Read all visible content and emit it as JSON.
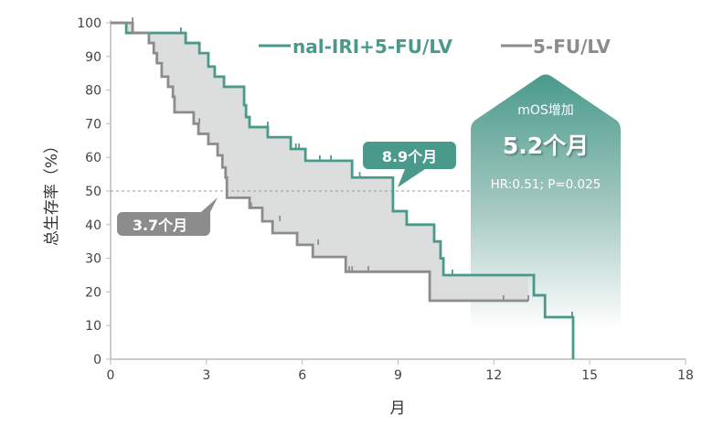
{
  "chart_data": {
    "type": "line",
    "subtype": "kaplan-meier step",
    "xlabel": "月",
    "ylabel": "总生存率（%）",
    "xlim": [
      0,
      18
    ],
    "ylim": [
      0,
      100
    ],
    "xticks": [
      0,
      3,
      6,
      9,
      12,
      15,
      18
    ],
    "yticks": [
      0,
      10,
      20,
      30,
      40,
      50,
      60,
      70,
      80,
      90,
      100
    ],
    "reference_line_y": 50,
    "legend_placement": "top-right",
    "colors": {
      "teal": "#4a9a8c",
      "grey": "#8c8c8c",
      "fill": "#dcdddd"
    },
    "series": [
      {
        "name": "nal-IRI+5-FU/LV",
        "color": "#4a9a8c",
        "steps": [
          [
            0,
            100
          ],
          [
            0.49,
            97
          ],
          [
            2.35,
            94
          ],
          [
            2.78,
            91
          ],
          [
            3.06,
            87
          ],
          [
            3.26,
            84
          ],
          [
            3.55,
            81
          ],
          [
            4.18,
            75.5
          ],
          [
            4.24,
            72
          ],
          [
            4.35,
            69
          ],
          [
            4.92,
            66
          ],
          [
            5.64,
            62.5
          ],
          [
            6.1,
            59
          ],
          [
            7.56,
            54
          ],
          [
            8.84,
            44
          ],
          [
            9.27,
            40
          ],
          [
            10.13,
            35
          ],
          [
            10.33,
            30
          ],
          [
            10.42,
            25
          ],
          [
            13.25,
            19
          ],
          [
            13.6,
            12.5
          ],
          [
            14.48,
            0
          ]
        ],
        "censored": [
          [
            2.2,
            97
          ],
          [
            4.92,
            69
          ],
          [
            5.65,
            62.5
          ],
          [
            5.8,
            62.5
          ],
          [
            5.9,
            62.5
          ],
          [
            6.55,
            59
          ],
          [
            6.9,
            59
          ],
          [
            7.8,
            54
          ],
          [
            10.7,
            25
          ],
          [
            14.45,
            12.5
          ]
        ],
        "median": 8.9
      },
      {
        "name": "5-FU/LV",
        "color": "#8c8c8c",
        "steps": [
          [
            0,
            100
          ],
          [
            0.69,
            97
          ],
          [
            1.2,
            94
          ],
          [
            1.35,
            91
          ],
          [
            1.45,
            88
          ],
          [
            1.6,
            84
          ],
          [
            1.8,
            81
          ],
          [
            1.95,
            78
          ],
          [
            2.0,
            73.4
          ],
          [
            2.6,
            70
          ],
          [
            2.75,
            67
          ],
          [
            3.06,
            64
          ],
          [
            3.35,
            60.6
          ],
          [
            3.5,
            57
          ],
          [
            3.6,
            54
          ],
          [
            3.64,
            48
          ],
          [
            4.35,
            45
          ],
          [
            4.75,
            41
          ],
          [
            5.07,
            37.5
          ],
          [
            5.84,
            34
          ],
          [
            6.33,
            30.4
          ],
          [
            7.36,
            26
          ],
          [
            9.99,
            17.4
          ]
        ],
        "end_x": 13.08,
        "censored": [
          [
            0.69,
            100
          ],
          [
            2.78,
            70
          ],
          [
            4.4,
            45
          ],
          [
            5.3,
            41
          ],
          [
            6.5,
            34
          ],
          [
            7.47,
            26
          ],
          [
            7.56,
            26
          ],
          [
            8.07,
            26
          ],
          [
            12.3,
            17.4
          ],
          [
            13.08,
            17.4
          ]
        ],
        "median": 3.7
      }
    ],
    "annotations": {
      "median_teal": "8.9个月",
      "median_grey": "3.7个月",
      "box_title": "mOS增加",
      "box_value": "5.2个月",
      "box_stats": "HR:0.51; P=0.025"
    }
  }
}
